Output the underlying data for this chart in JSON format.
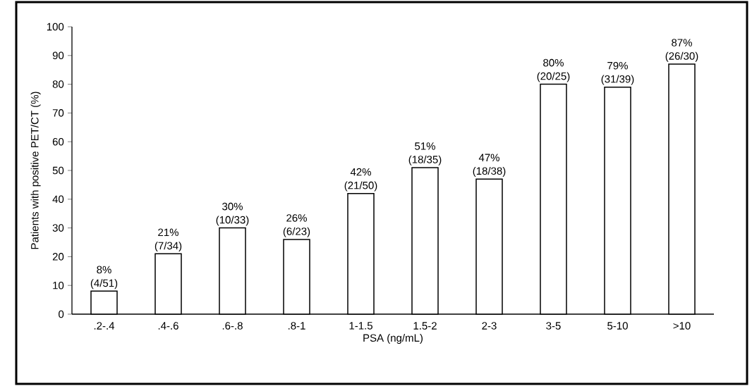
{
  "chart_data": {
    "type": "bar",
    "xlabel": "PSA (ng/mL)",
    "ylabel": "Patients with positive PET/CT (%)",
    "categories": [
      ".2-.4",
      ".4-.6",
      ".6-.8",
      ".8-1",
      "1-1.5",
      "1.5-2",
      "2-3",
      "3-5",
      "5-10",
      ">10"
    ],
    "values": [
      8,
      21,
      30,
      26,
      42,
      51,
      47,
      80,
      79,
      87
    ],
    "value_labels": [
      "8% (4/51)",
      "21% (7/34)",
      "30% (10/33)",
      "26% (6/23)",
      "42% (21/50)",
      "51% (18/35)",
      "47% (18/38)",
      "80% (20/25)",
      "79% (31/39)",
      "87% (26/30)"
    ],
    "color": "#ffffff",
    "ylim": [
      0,
      100
    ],
    "yticks": [
      0,
      10,
      20,
      30,
      40,
      50,
      60,
      70,
      80,
      90,
      100
    ]
  }
}
